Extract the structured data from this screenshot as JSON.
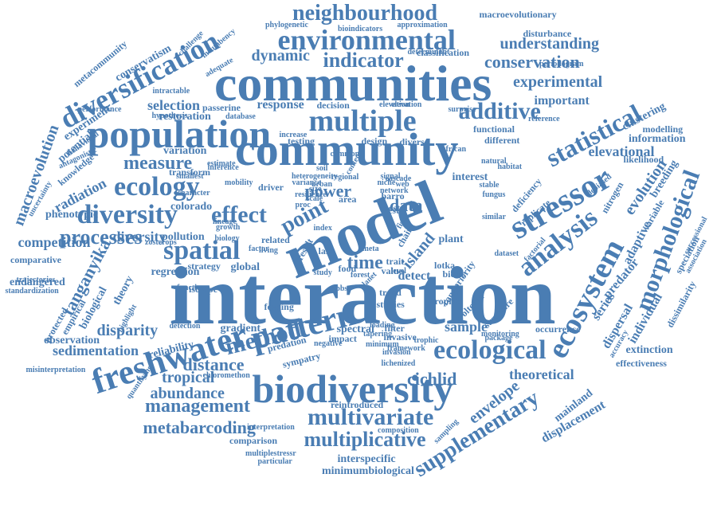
{
  "colors": {
    "word": "#4a7db3",
    "background": "#ffffff"
  },
  "words": [
    "interaction",
    "model",
    "communities",
    "community",
    "biodiversity",
    "freshwater",
    "population",
    "stressor",
    "ecosystem",
    "pattern",
    "ecological",
    "analysis",
    "diversification",
    "multiple",
    "diversity",
    "environmental",
    "neighbourhood",
    "spatial",
    "ecology",
    "statistical",
    "additive",
    "processes",
    "multivariate",
    "supplementary",
    "morphological",
    "method",
    "effect",
    "multiplicative",
    "management",
    "distance",
    "metabarcoding",
    "cichlid",
    "abundance",
    "tanganyika",
    "measure",
    "tropical",
    "time",
    "point",
    "indicator",
    "dynamic",
    "conservation",
    "understanding",
    "experimental",
    "macroevolution",
    "power",
    "island",
    "data",
    "envelope",
    "disparity",
    "sedimentation",
    "theoretical",
    "sample",
    "radiation",
    "competition",
    "diversity",
    "endangered",
    "selection",
    "response",
    "important",
    "elevational",
    "evolution",
    "information",
    "clustering",
    "modelling",
    "dispersal",
    "predator",
    "adaptive",
    "series",
    "individual",
    "displacement",
    "mainland",
    "extinction",
    "effectiveness",
    "regression",
    "strategy",
    "global",
    "food",
    "detect",
    "feeding",
    "reliability",
    "gradient",
    "observation",
    "comparison",
    "interspecific",
    "minimumbiological",
    "multiplestressr",
    "reintroduced",
    "interpretation",
    "spectral",
    "trend",
    "studies",
    "restoration",
    "variation",
    "colorado",
    "pollution",
    "phenotypic",
    "potential",
    "experiment",
    "conservatism",
    "metacommunity",
    "challenge",
    "incumbency",
    "adequate",
    "phylogenetic",
    "bioindicators",
    "approximation",
    "macroevolutionary",
    "disturbance",
    "classification",
    "periodogram",
    "passerine",
    "database",
    "decision",
    "elevation",
    "surprise",
    "functional",
    "different",
    "testing",
    "design",
    "diverse",
    "african",
    "driver",
    "related",
    "living",
    "area",
    "interest",
    "replicate",
    "factorial",
    "breeding",
    "likelihood",
    "nitrogen",
    "variable",
    "dissimilarity",
    "speciation",
    "association",
    "successional",
    "debiased",
    "stable",
    "biological",
    "theory",
    "comparative",
    "protected",
    "empirical",
    "biotic",
    "trophic",
    "range",
    "priority",
    "value",
    "volterra",
    "lotka",
    "plant",
    "filter",
    "invasive",
    "trait",
    "chain",
    "urban",
    "size",
    "proc",
    "index",
    "meta",
    "isotope",
    "function",
    "study",
    "gibbs",
    "forest",
    "planet",
    "level",
    "invasion",
    "lichenized",
    "structure",
    "occurrence",
    "package",
    "dataset",
    "monitoring",
    "sampling",
    "framework",
    "composition",
    "predation",
    "sympatry",
    "impact",
    "negative",
    "minimum",
    "tapering",
    "detection",
    "quantifying",
    "knowledge",
    "uncertainty",
    "behavioral",
    "antagonistic",
    "hypothesis",
    "transform",
    "smallest",
    "character",
    "zosterops",
    "standardization",
    "misinterpretation",
    "lake",
    "result",
    "deficiency",
    "accuracy",
    "barro",
    "most",
    "test",
    "fish",
    "biology",
    "lineage",
    "growth",
    "estimate",
    "inference",
    "factor",
    "increase",
    "common",
    "regional",
    "natural",
    "habitat",
    "determinant",
    "elevation",
    "intractable",
    "performance",
    "trajectories",
    "highlight",
    "chloromethon",
    "particular",
    "loading",
    "reference",
    "trophic",
    "similar",
    "fungus",
    "content",
    "soil",
    "mobility",
    "heterogeneity",
    "variance",
    "resilience",
    "scale",
    "signal",
    "niche",
    "cascade",
    "web",
    "network"
  ]
}
